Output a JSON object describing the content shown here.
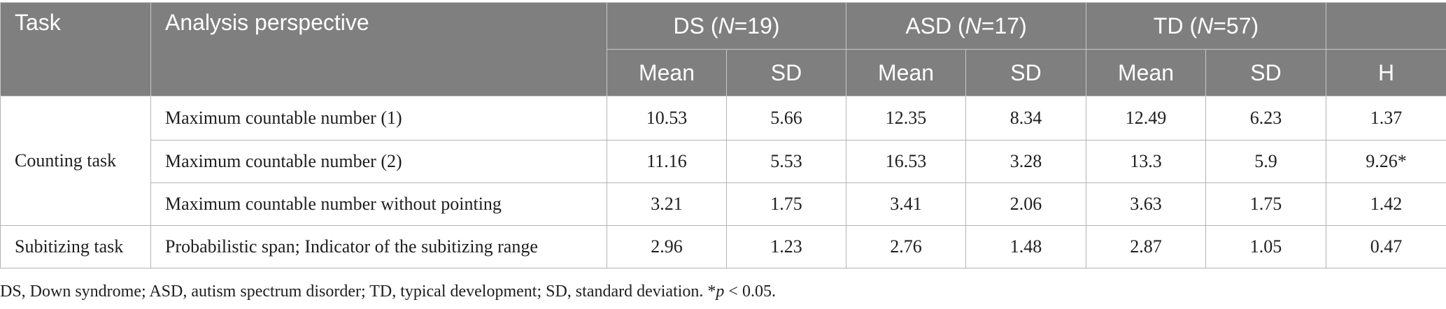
{
  "header": {
    "task": "Task",
    "perspective": "Analysis perspective",
    "groups": [
      {
        "prefix": "DS (",
        "n": "N",
        "suffix": "=19)"
      },
      {
        "prefix": "ASD (",
        "n": "N",
        "suffix": "=17)"
      },
      {
        "prefix": "TD (",
        "n": "N",
        "suffix": "=57)"
      }
    ],
    "mean": "Mean",
    "sd": "SD",
    "h": "H"
  },
  "rows": [
    {
      "task": "Counting task",
      "perspective": "Maximum countable number (1)",
      "ds_mean": "10.53",
      "ds_sd": "5.66",
      "asd_mean": "12.35",
      "asd_sd": "8.34",
      "td_mean": "12.49",
      "td_sd": "6.23",
      "h": "1.37"
    },
    {
      "perspective": "Maximum countable number (2)",
      "ds_mean": "11.16",
      "ds_sd": "5.53",
      "asd_mean": "16.53",
      "asd_sd": "3.28",
      "td_mean": "13.3",
      "td_sd": "5.9",
      "h": "9.26*"
    },
    {
      "perspective": "Maximum countable number without pointing",
      "ds_mean": "3.21",
      "ds_sd": "1.75",
      "asd_mean": "3.41",
      "asd_sd": "2.06",
      "td_mean": "3.63",
      "td_sd": "1.75",
      "h": "1.42"
    },
    {
      "task": "Subitizing task",
      "perspective": "Probabilistic span; Indicator of the subitizing range",
      "ds_mean": "2.96",
      "ds_sd": "1.23",
      "asd_mean": "2.76",
      "asd_sd": "1.48",
      "td_mean": "2.87",
      "td_sd": "1.05",
      "h": "0.47"
    }
  ],
  "footnote": {
    "text": "DS, Down syndrome; ASD, autism spectrum disorder; TD, typical development; SD, standard deviation. *",
    "p": "p",
    "tail": " < 0.05."
  }
}
